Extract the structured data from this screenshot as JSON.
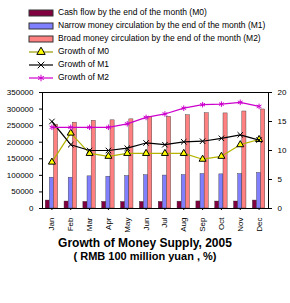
{
  "chart_data": {
    "type": "bar",
    "title": "Growth of Money Supply, 2005",
    "subtitle": "( RMB 100 million yuan , %)",
    "categories": [
      "Jan",
      "Feb",
      "Mar",
      "Apr",
      "May",
      "Jun",
      "Jul",
      "Aug",
      "Sep",
      "Oct",
      "Nov",
      "Dec"
    ],
    "series": [
      {
        "name": "Cash flow by the end of the month (M0)",
        "type": "bar",
        "color": "#800040",
        "values": [
          24000,
          21000,
          20000,
          20000,
          19600,
          19800,
          20000,
          20600,
          21300,
          21000,
          21100,
          24000
        ]
      },
      {
        "name": "Narrow money circulation by the end of the month (M1)",
        "type": "bar",
        "color": "#8080ff",
        "values": [
          93000,
          93000,
          97000,
          96000,
          98000,
          100600,
          99400,
          101000,
          104000,
          103000,
          104000,
          107300
        ]
      },
      {
        "name": "Broad money circulation by the end of the month (M2)",
        "type": "bar",
        "color": "#ff8080",
        "values": [
          253000,
          259000,
          264600,
          266000,
          269000,
          275800,
          276700,
          281300,
          287400,
          286900,
          292700,
          298800
        ]
      },
      {
        "name": "Growth of M0",
        "type": "line",
        "axis": "y2",
        "color": "#ffff00",
        "marker": "triangle",
        "line_style": "solid",
        "values": [
          8,
          13,
          9.5,
          9,
          9.5,
          9.5,
          9.5,
          9.5,
          8.5,
          9,
          11,
          11.9
        ]
      },
      {
        "name": "Growth of M1",
        "type": "line",
        "axis": "y2",
        "color": "#000000",
        "marker": "x",
        "line_style": "solid",
        "values": [
          15,
          11,
          10,
          10,
          10.4,
          11.3,
          11,
          11.5,
          11.6,
          12.1,
          12.7,
          11.8
        ]
      },
      {
        "name": "Growth of M2",
        "type": "line",
        "axis": "y2",
        "color": "#cc00cc",
        "marker": "star",
        "line_style": "solid",
        "values": [
          14,
          14,
          14,
          14,
          14.6,
          15.7,
          16.3,
          17.3,
          17.9,
          18,
          18.3,
          17.6
        ]
      }
    ],
    "ylim": [
      0,
      350000
    ],
    "yticks": [
      0,
      50000,
      100000,
      150000,
      200000,
      250000,
      300000,
      350000
    ],
    "y2lim": [
      0,
      20
    ],
    "y2ticks": [
      0,
      5,
      10,
      15,
      20
    ],
    "grid": false,
    "legend": "top"
  }
}
